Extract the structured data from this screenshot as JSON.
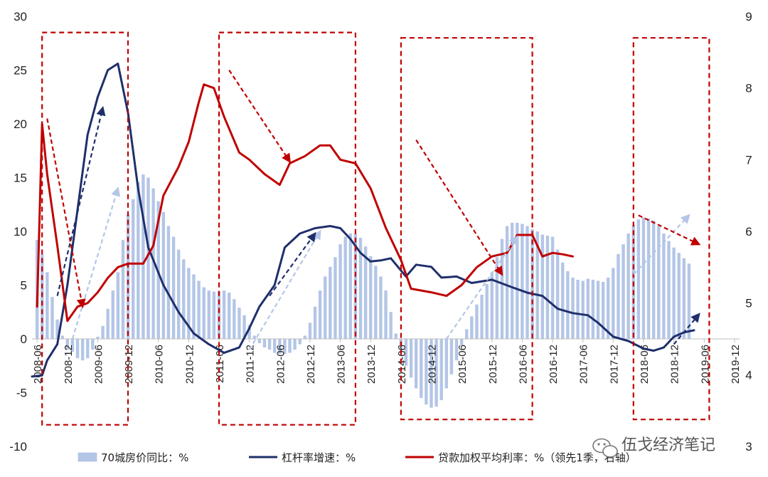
{
  "watermark": {
    "text": "伍戈经济笔记",
    "icon": "wechat-icon"
  },
  "chart_data": {
    "type": "bar+line",
    "title": "",
    "xlabel": "",
    "ylabel": "",
    "ylim": [
      -10,
      30
    ],
    "yticks": [
      -10,
      -5,
      0,
      5,
      10,
      15,
      20,
      25,
      30
    ],
    "y2lim": [
      3,
      9
    ],
    "y2ticks": [
      3,
      4,
      5,
      6,
      7,
      8,
      9
    ],
    "xlim": [
      2008.333,
      2020.0
    ],
    "xticks": [
      {
        "label": "2008-06",
        "x": 2008.417
      },
      {
        "label": "2008-12",
        "x": 2008.917
      },
      {
        "label": "2009-06",
        "x": 2009.417
      },
      {
        "label": "2009-12",
        "x": 2009.917
      },
      {
        "label": "2010-06",
        "x": 2010.417
      },
      {
        "label": "2010-12",
        "x": 2010.917
      },
      {
        "label": "2011-06",
        "x": 2011.417
      },
      {
        "label": "2011-12",
        "x": 2011.917
      },
      {
        "label": "2012-06",
        "x": 2012.417
      },
      {
        "label": "2012-12",
        "x": 2012.917
      },
      {
        "label": "2013-06",
        "x": 2013.417
      },
      {
        "label": "2013-12",
        "x": 2013.917
      },
      {
        "label": "2014-06",
        "x": 2014.417
      },
      {
        "label": "2014-12",
        "x": 2014.917
      },
      {
        "label": "2015-06",
        "x": 2015.417
      },
      {
        "label": "2015-12",
        "x": 2015.917
      },
      {
        "label": "2016-06",
        "x": 2016.417
      },
      {
        "label": "2016-12",
        "x": 2016.917
      },
      {
        "label": "2017-06",
        "x": 2017.417
      },
      {
        "label": "2017-12",
        "x": 2017.917
      },
      {
        "label": "2018-06",
        "x": 2018.417
      },
      {
        "label": "2018-12",
        "x": 2018.917
      },
      {
        "label": "2019-06",
        "x": 2019.417
      },
      {
        "label": "2019-12",
        "x": 2019.917
      }
    ],
    "legend": {
      "placement": "bottom",
      "items": [
        {
          "label": "70城房价同比：%",
          "type": "bar",
          "color": "#b4c6e7"
        },
        {
          "label": "杠杆率增速：%",
          "type": "line",
          "color": "#1f2f6b"
        },
        {
          "label": "贷款加权平均利率：%（领先1季，右轴）",
          "type": "line",
          "color": "#c00000"
        }
      ]
    },
    "series": [
      {
        "name": "70城房价同比：%",
        "type": "bar",
        "axis": "left",
        "color": "#b4c6e7",
        "start": 2008.417,
        "step": 0.08333,
        "values": [
          9.2,
          7.9,
          6.2,
          3.9,
          1.8,
          0.3,
          -1.0,
          -1.2,
          -1.8,
          -2.0,
          -1.8,
          -1.0,
          0.2,
          1.2,
          2.8,
          4.5,
          6.2,
          9.2,
          11.6,
          13.0,
          14.6,
          15.3,
          15.0,
          14.0,
          12.8,
          11.8,
          10.5,
          9.5,
          8.3,
          7.4,
          6.6,
          6.0,
          5.4,
          4.8,
          4.5,
          4.4,
          4.4,
          4.5,
          4.3,
          3.7,
          2.9,
          2.2,
          1.3,
          0.3,
          -0.4,
          -0.8,
          -1.0,
          -1.3,
          -1.4,
          -1.4,
          -1.3,
          -1.0,
          -0.5,
          0.3,
          1.5,
          3.0,
          4.5,
          5.8,
          6.7,
          7.6,
          8.8,
          9.5,
          9.8,
          9.8,
          9.4,
          8.6,
          7.7,
          6.8,
          5.8,
          4.5,
          2.5,
          0.5,
          -1.0,
          -2.5,
          -3.6,
          -4.6,
          -5.5,
          -6.1,
          -6.4,
          -6.3,
          -5.7,
          -4.6,
          -3.3,
          -2.0,
          -0.6,
          0.9,
          2.1,
          3.2,
          4.1,
          5.1,
          6.2,
          7.6,
          9.3,
          10.5,
          10.8,
          10.8,
          10.7,
          10.5,
          10.2,
          10.0,
          9.7,
          9.6,
          9.5,
          8.3,
          7.1,
          6.3,
          5.7,
          5.5,
          5.4,
          5.6,
          5.5,
          5.4,
          5.3,
          5.7,
          6.6,
          7.9,
          8.8,
          9.8,
          10.6,
          11.1,
          11.3,
          11.2,
          11.0,
          10.5,
          9.8,
          9.1,
          8.5,
          8.0,
          7.5,
          7.0
        ]
      },
      {
        "name": "杠杆率增速：%",
        "type": "line",
        "axis": "left",
        "color": "#1f2f6b",
        "points": [
          [
            2008.333,
            -3.5
          ],
          [
            2008.5,
            -3.4
          ],
          [
            2008.583,
            -2.0
          ],
          [
            2008.75,
            -0.5
          ],
          [
            2008.917,
            5.0
          ],
          [
            2009.083,
            12.0
          ],
          [
            2009.25,
            19.0
          ],
          [
            2009.417,
            22.5
          ],
          [
            2009.583,
            25.0
          ],
          [
            2009.75,
            25.6
          ],
          [
            2009.917,
            21.0
          ],
          [
            2010.083,
            14.0
          ],
          [
            2010.25,
            8.5
          ],
          [
            2010.5,
            5.0
          ],
          [
            2010.75,
            2.5
          ],
          [
            2011.0,
            0.5
          ],
          [
            2011.25,
            -0.5
          ],
          [
            2011.5,
            -1.3
          ],
          [
            2011.75,
            -0.8
          ],
          [
            2011.917,
            1.0
          ],
          [
            2012.083,
            3.0
          ],
          [
            2012.333,
            5.0
          ],
          [
            2012.5,
            8.5
          ],
          [
            2012.75,
            9.8
          ],
          [
            2013.0,
            10.3
          ],
          [
            2013.25,
            10.5
          ],
          [
            2013.417,
            10.3
          ],
          [
            2013.583,
            9.3
          ],
          [
            2013.75,
            8.0
          ],
          [
            2013.917,
            7.2
          ],
          [
            2014.083,
            7.3
          ],
          [
            2014.25,
            7.5
          ],
          [
            2014.5,
            5.8
          ],
          [
            2014.667,
            6.9
          ],
          [
            2014.917,
            6.7
          ],
          [
            2015.083,
            5.7
          ],
          [
            2015.333,
            5.8
          ],
          [
            2015.583,
            5.2
          ],
          [
            2015.917,
            5.5
          ],
          [
            2016.25,
            4.8
          ],
          [
            2016.5,
            4.3
          ],
          [
            2016.75,
            4.0
          ],
          [
            2017.0,
            2.8
          ],
          [
            2017.25,
            2.4
          ],
          [
            2017.5,
            2.2
          ],
          [
            2017.667,
            1.5
          ],
          [
            2017.917,
            0.2
          ],
          [
            2018.167,
            -0.2
          ],
          [
            2018.417,
            -0.9
          ],
          [
            2018.583,
            -1.1
          ],
          [
            2018.75,
            -0.8
          ],
          [
            2018.917,
            0.2
          ],
          [
            2019.083,
            0.6
          ],
          [
            2019.25,
            0.8
          ]
        ]
      },
      {
        "name": "贷款加权平均利率：%（领先1季，右轴）",
        "type": "line",
        "axis": "right",
        "color": "#c00000",
        "points": [
          [
            2008.417,
            4.95
          ],
          [
            2008.5,
            7.5
          ],
          [
            2008.583,
            6.8
          ],
          [
            2008.75,
            5.8
          ],
          [
            2008.917,
            4.75
          ],
          [
            2009.083,
            4.95
          ],
          [
            2009.25,
            5.0
          ],
          [
            2009.417,
            5.15
          ],
          [
            2009.583,
            5.35
          ],
          [
            2009.75,
            5.5
          ],
          [
            2009.917,
            5.55
          ],
          [
            2010.167,
            5.55
          ],
          [
            2010.333,
            5.8
          ],
          [
            2010.5,
            6.5
          ],
          [
            2010.75,
            6.9
          ],
          [
            2010.917,
            7.25
          ],
          [
            2011.083,
            7.8
          ],
          [
            2011.167,
            8.05
          ],
          [
            2011.333,
            8.0
          ],
          [
            2011.5,
            7.6
          ],
          [
            2011.75,
            7.1
          ],
          [
            2011.917,
            7.0
          ],
          [
            2012.167,
            6.8
          ],
          [
            2012.417,
            6.65
          ],
          [
            2012.583,
            6.95
          ],
          [
            2012.833,
            7.05
          ],
          [
            2013.083,
            7.2
          ],
          [
            2013.25,
            7.2
          ],
          [
            2013.417,
            7.0
          ],
          [
            2013.667,
            6.95
          ],
          [
            2013.917,
            6.6
          ],
          [
            2014.167,
            6.05
          ],
          [
            2014.417,
            5.6
          ],
          [
            2014.583,
            5.2
          ],
          [
            2014.917,
            5.15
          ],
          [
            2015.167,
            5.1
          ],
          [
            2015.417,
            5.25
          ],
          [
            2015.667,
            5.5
          ],
          [
            2015.917,
            5.65
          ],
          [
            2016.167,
            5.7
          ],
          [
            2016.333,
            5.95
          ],
          [
            2016.583,
            5.95
          ],
          [
            2016.75,
            5.65
          ],
          [
            2016.917,
            5.7
          ],
          [
            2017.083,
            5.68
          ],
          [
            2017.25,
            5.65
          ]
        ]
      }
    ],
    "highlight_boxes": [
      {
        "x0": 2008.5,
        "x1": 2009.917,
        "y0": -8.0,
        "y1": 28.5
      },
      {
        "x0": 2011.417,
        "x1": 2013.667,
        "y0": -8.0,
        "y1": 28.5
      },
      {
        "x0": 2014.417,
        "x1": 2016.583,
        "y0": -7.5,
        "y1": 28.0
      },
      {
        "x0": 2018.25,
        "x1": 2019.5,
        "y0": -7.5,
        "y1": 28.0
      }
    ],
    "trend_arrows": [
      {
        "series": "杠杆率增速：%",
        "color": "#1f2f6b",
        "from": [
          2008.75,
          4.0
        ],
        "to": [
          2009.5,
          21.5
        ]
      },
      {
        "series": "70城房价同比：%",
        "color": "#b4c6e7",
        "from": [
          2009.0,
          0.0
        ],
        "to": [
          2009.75,
          14.0
        ]
      },
      {
        "series": "贷款加权平均利率：%（领先1季，右轴）",
        "color": "#c00000",
        "from": [
          2008.583,
          20.5
        ],
        "to": [
          2009.167,
          3.0
        ]
      },
      {
        "series": "贷款加权平均利率：%（领先1季，右轴）",
        "color": "#c00000",
        "from": [
          2011.583,
          25.0
        ],
        "to": [
          2012.583,
          16.5
        ]
      },
      {
        "series": "70城房价同比：%",
        "color": "#b4c6e7",
        "from": [
          2011.917,
          -1.0
        ],
        "to": [
          2013.083,
          10.0
        ]
      },
      {
        "series": "杠杆率增速：%",
        "color": "#1f2f6b",
        "from": [
          2012.25,
          4.0
        ],
        "to": [
          2013.0,
          9.8
        ]
      },
      {
        "series": "贷款加权平均利率：%（领先1季，右轴）",
        "color": "#c00000",
        "from": [
          2014.667,
          18.5
        ],
        "to": [
          2016.083,
          6.0
        ]
      },
      {
        "series": "70城房价同比：%",
        "color": "#b4c6e7",
        "from": [
          2015.167,
          0.0
        ],
        "to": [
          2016.333,
          9.5
        ]
      },
      {
        "series": "70城房价同比：%",
        "color": "#b4c6e7",
        "from": [
          2018.25,
          6.0
        ],
        "to": [
          2019.167,
          11.5
        ]
      },
      {
        "series": "贷款加权平均利率：%（领先1季，右轴）",
        "color": "#c00000",
        "from": [
          2018.333,
          11.5
        ],
        "to": [
          2019.333,
          8.8
        ]
      },
      {
        "series": "杠杆率增速：%",
        "color": "#1f2f6b",
        "from": [
          2018.917,
          -0.5
        ],
        "to": [
          2019.333,
          2.3
        ]
      }
    ],
    "grid": false
  }
}
